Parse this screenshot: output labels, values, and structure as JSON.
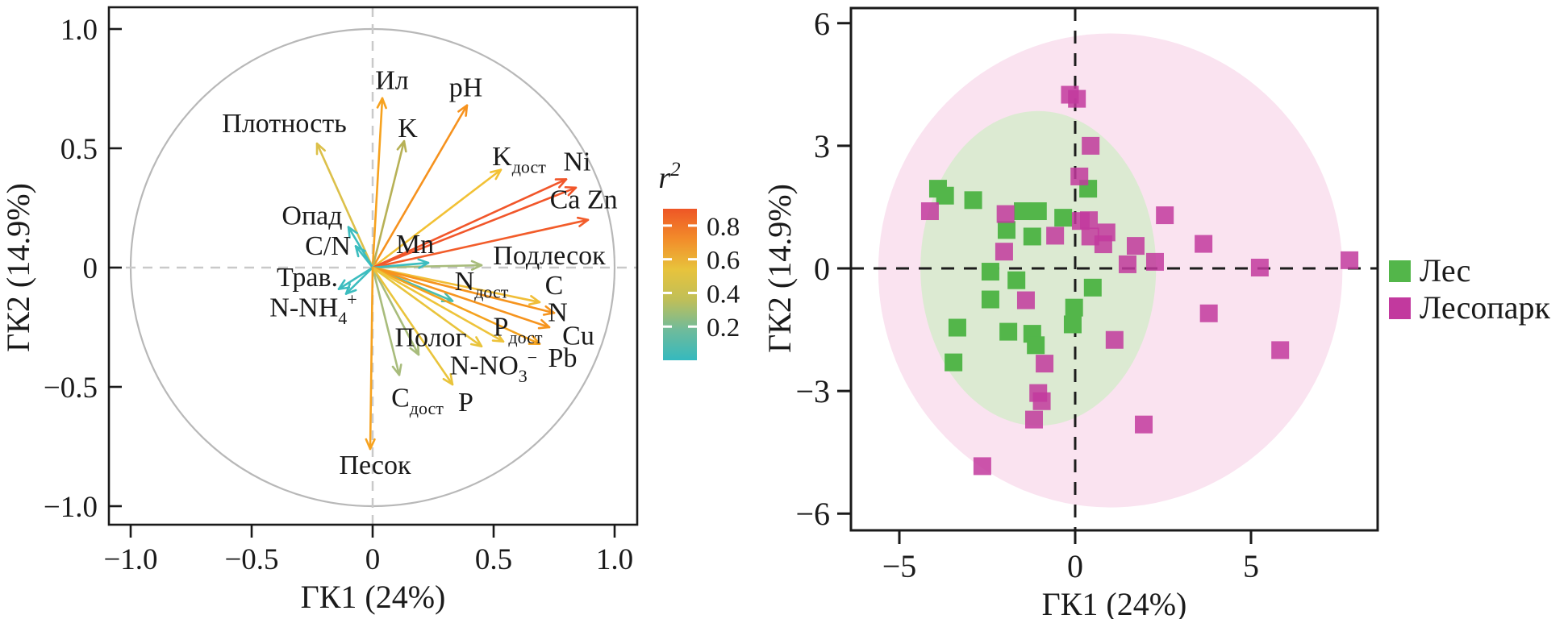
{
  "figure": {
    "kind": "two-panel PCA figure",
    "text_color": "#1a1a1a",
    "axis_color": "#1a1a1a",
    "circle_color": "#b8b8b8",
    "left_dash_color": "#c9c9c9",
    "right_dash_color": "#1c1c1c"
  },
  "legend": {
    "items": [
      {
        "label": "Лес",
        "color": "#53b64a"
      },
      {
        "label": "Лесопарк",
        "color": "#c2399e"
      }
    ]
  },
  "colorbar": {
    "title_main": "r",
    "title_sup": "2",
    "min": 0,
    "max": 0.9,
    "ticks": [
      0.8,
      0.6,
      0.4,
      0.2
    ],
    "tick_labels": [
      "0.8",
      "0.6",
      "0.4",
      "0.2"
    ],
    "gradient_top_to_bottom": [
      "#ee5626",
      "#f28c2a",
      "#e8c33c",
      "#c0bf58",
      "#6fbb9b",
      "#35b9be"
    ]
  },
  "chart_data": [
    {
      "type": "scatter",
      "subtype": "pca-correlation-biplot",
      "xlabel": "ГК1 (24%)",
      "ylabel": "ГК2 (14.9%)",
      "xlim": [
        -1.09,
        1.09
      ],
      "ylim": [
        -1.08,
        1.09
      ],
      "x_ticks": [
        -1.0,
        -0.5,
        0,
        0.5,
        1.0
      ],
      "x_tick_labels": [
        "−1.0",
        "−0.5",
        "0",
        "0.5",
        "1.0"
      ],
      "y_ticks": [
        1.0,
        0.5,
        0,
        -0.5,
        -1.0
      ],
      "y_tick_labels": [
        "1.0",
        "0.5",
        "0",
        "−0.5",
        "−1.0"
      ],
      "unit_circle": true,
      "zero_lines": "gray-dashed",
      "colorbar_variable": "r2",
      "arrows": [
        {
          "name": "Ил",
          "x": 0.04,
          "y": 0.71,
          "r2": 0.6,
          "color": "#f6a21f"
        },
        {
          "name": "pH",
          "x": 0.39,
          "y": 0.68,
          "r2": 0.62,
          "color": "#f6921e"
        },
        {
          "name": "Плотность",
          "x": -0.23,
          "y": 0.52,
          "r2": 0.4,
          "color": "#dcc04a"
        },
        {
          "name": "K",
          "x": 0.13,
          "y": 0.53,
          "r2": 0.33,
          "color": "#b7b156"
        },
        {
          "name": "Kдост",
          "x": 0.53,
          "y": 0.41,
          "r2": 0.48,
          "color": "#f2c135"
        },
        {
          "name": "Ni",
          "x": 0.8,
          "y": 0.37,
          "r2": 0.85,
          "color": "#f1562a"
        },
        {
          "name": "Ca",
          "x": 0.84,
          "y": 0.335,
          "r2": 0.84,
          "color": "#f1562a"
        },
        {
          "name": "Zn",
          "x": 0.89,
          "y": 0.2,
          "r2": 0.83,
          "color": "#f25c2a"
        },
        {
          "name": "Подлесок",
          "x": 0.45,
          "y": 0.01,
          "r2": 0.25,
          "color": "#a8bc7c"
        },
        {
          "name": "Mn",
          "x": 0.23,
          "y": 0.02,
          "r2": 0.1,
          "color": "#3cbdbf"
        },
        {
          "name": "Опад",
          "x": -0.1,
          "y": 0.17,
          "r2": 0.1,
          "color": "#3cbdbf"
        },
        {
          "name": "C/N",
          "x": -0.07,
          "y": 0.09,
          "r2": 0.08,
          "color": "#3cbdbf"
        },
        {
          "name": "Трав.",
          "x": -0.14,
          "y": -0.09,
          "r2": 0.1,
          "color": "#3cbdbf"
        },
        {
          "name": "N-NH4+",
          "x": -0.11,
          "y": -0.11,
          "r2": 0.1,
          "color": "#3cbdbf"
        },
        {
          "name": "Nдост",
          "x": 0.33,
          "y": -0.14,
          "r2": 0.12,
          "color": "#49bdae"
        },
        {
          "name": "C",
          "x": 0.69,
          "y": -0.145,
          "r2": 0.5,
          "color": "#f0be38"
        },
        {
          "name": "N",
          "x": 0.75,
          "y": -0.19,
          "r2": 0.62,
          "color": "#f6941e"
        },
        {
          "name": "Cu",
          "x": 0.73,
          "y": -0.25,
          "r2": 0.63,
          "color": "#f6941e"
        },
        {
          "name": "Pb",
          "x": 0.69,
          "y": -0.32,
          "r2": 0.6,
          "color": "#f4a21e"
        },
        {
          "name": "Pдост",
          "x": 0.54,
          "y": -0.31,
          "r2": 0.47,
          "color": "#eec33a"
        },
        {
          "name": "N-NO3-",
          "x": 0.45,
          "y": -0.33,
          "r2": 0.45,
          "color": "#e9c43c"
        },
        {
          "name": "Полог",
          "x": 0.19,
          "y": -0.365,
          "r2": 0.27,
          "color": "#a8bc7c"
        },
        {
          "name": "Cдост",
          "x": 0.11,
          "y": -0.45,
          "r2": 0.26,
          "color": "#a8bc7c"
        },
        {
          "name": "P",
          "x": 0.33,
          "y": -0.49,
          "r2": 0.45,
          "color": "#e9c43c"
        },
        {
          "name": "Песок",
          "x": -0.01,
          "y": -0.76,
          "r2": 0.6,
          "color": "#f6a21f"
        }
      ],
      "annotations": [
        {
          "text": "Ил",
          "x": 0.08,
          "y": 0.785
        },
        {
          "text": "pH",
          "x": 0.385,
          "y": 0.755
        },
        {
          "text": "Плотность",
          "x": -0.365,
          "y": 0.605
        },
        {
          "text": "K",
          "x": 0.145,
          "y": 0.585
        },
        {
          "text": "K_{дост}",
          "x": 0.605,
          "y": 0.467
        },
        {
          "text": "Ni",
          "x": 0.845,
          "y": 0.445
        },
        {
          "text": "Ca Zn",
          "x": 0.872,
          "y": 0.285
        },
        {
          "text": "Подлесок",
          "x": 0.73,
          "y": 0.05
        },
        {
          "text": "Mn",
          "x": 0.175,
          "y": 0.098
        },
        {
          "text": "Опад",
          "x": -0.25,
          "y": 0.218
        },
        {
          "text": "C/N",
          "x": -0.185,
          "y": 0.092
        },
        {
          "text": "Трав.",
          "x": -0.27,
          "y": -0.04
        },
        {
          "text": "N-NH_{4}^{+}",
          "x": -0.245,
          "y": -0.168
        },
        {
          "text": "N_{дост}",
          "x": 0.45,
          "y": -0.058
        },
        {
          "text": "C",
          "x": 0.75,
          "y": -0.075
        },
        {
          "text": "N",
          "x": 0.765,
          "y": -0.188
        },
        {
          "text": "Cu",
          "x": 0.85,
          "y": -0.285
        },
        {
          "text": "P_{дост}",
          "x": 0.6,
          "y": -0.248
        },
        {
          "text": "Pb",
          "x": 0.785,
          "y": -0.378
        },
        {
          "text": "N-NO_{3}^{−}",
          "x": 0.5,
          "y": -0.41
        },
        {
          "text": "Полог",
          "x": 0.24,
          "y": -0.292
        },
        {
          "text": "C_{дост}",
          "x": 0.185,
          "y": -0.545
        },
        {
          "text": "P",
          "x": 0.385,
          "y": -0.565
        },
        {
          "text": "Песок",
          "x": 0.01,
          "y": -0.827
        }
      ]
    },
    {
      "type": "scatter",
      "subtype": "pca-scores",
      "xlabel": "ГК1 (24%)",
      "ylabel": "ГК2 (14.9%)",
      "xlim": [
        -6.4,
        8.6
      ],
      "ylim": [
        -6.4,
        6.4
      ],
      "x_ticks": [
        -5,
        0,
        5
      ],
      "x_tick_labels": [
        "−5",
        "0",
        "5"
      ],
      "y_ticks": [
        6,
        3,
        0,
        -3,
        -6
      ],
      "y_tick_labels": [
        "6",
        "3",
        "0",
        "−3",
        "−6"
      ],
      "zero_lines": "black-dashed",
      "marker": "square",
      "groups": [
        {
          "name": "Лес",
          "color": "#53b64a",
          "ellipse": {
            "cx": -1.05,
            "cy": 0.0,
            "rx": 3.35,
            "ry": 3.85,
            "fill": "#dcead2"
          },
          "points": [
            [
              -3.9,
              1.95
            ],
            [
              -3.7,
              1.78
            ],
            [
              -2.9,
              1.67
            ],
            [
              -1.49,
              1.4
            ],
            [
              -1.06,
              1.4
            ],
            [
              -0.34,
              1.24
            ],
            [
              0.37,
              1.95
            ],
            [
              -1.95,
              0.94
            ],
            [
              -1.22,
              0.78
            ],
            [
              -2.41,
              -0.08
            ],
            [
              -1.67,
              -0.29
            ],
            [
              -2.41,
              -0.76
            ],
            [
              0.5,
              -0.47
            ],
            [
              -0.03,
              -0.96
            ],
            [
              -0.07,
              -1.37
            ],
            [
              -3.35,
              -1.45
            ],
            [
              -1.9,
              -1.55
            ],
            [
              -1.22,
              -1.6
            ],
            [
              -1.12,
              -1.88
            ],
            [
              -3.46,
              -2.3
            ]
          ]
        },
        {
          "name": "Лесопарк",
          "color": "#c2399e",
          "ellipse": {
            "cx": 1.0,
            "cy": -0.05,
            "rx": 6.6,
            "ry": 5.8,
            "fill": "#fae3f0"
          },
          "points": [
            [
              -0.15,
              4.25
            ],
            [
              0.05,
              4.15
            ],
            [
              0.44,
              3.0
            ],
            [
              0.12,
              2.25
            ],
            [
              -4.13,
              1.4
            ],
            [
              -1.98,
              1.33
            ],
            [
              0.16,
              1.16
            ],
            [
              0.39,
              1.18
            ],
            [
              -0.57,
              0.8
            ],
            [
              0.43,
              0.78
            ],
            [
              0.89,
              0.88
            ],
            [
              0.8,
              0.59
            ],
            [
              1.72,
              0.55
            ],
            [
              1.49,
              0.1
            ],
            [
              2.27,
              0.16
            ],
            [
              2.55,
              1.3
            ],
            [
              3.65,
              0.6
            ],
            [
              -2.02,
              0.41
            ],
            [
              -1.4,
              -0.78
            ],
            [
              1.12,
              -1.75
            ],
            [
              -0.87,
              -2.33
            ],
            [
              -1.05,
              -3.05
            ],
            [
              -0.95,
              -3.25
            ],
            [
              -1.17,
              -3.7
            ],
            [
              1.95,
              -3.82
            ],
            [
              -2.64,
              -4.84
            ],
            [
              5.25,
              0.02
            ],
            [
              7.8,
              0.2
            ],
            [
              3.8,
              -1.1
            ],
            [
              5.83,
              -2.0
            ]
          ]
        }
      ]
    }
  ]
}
